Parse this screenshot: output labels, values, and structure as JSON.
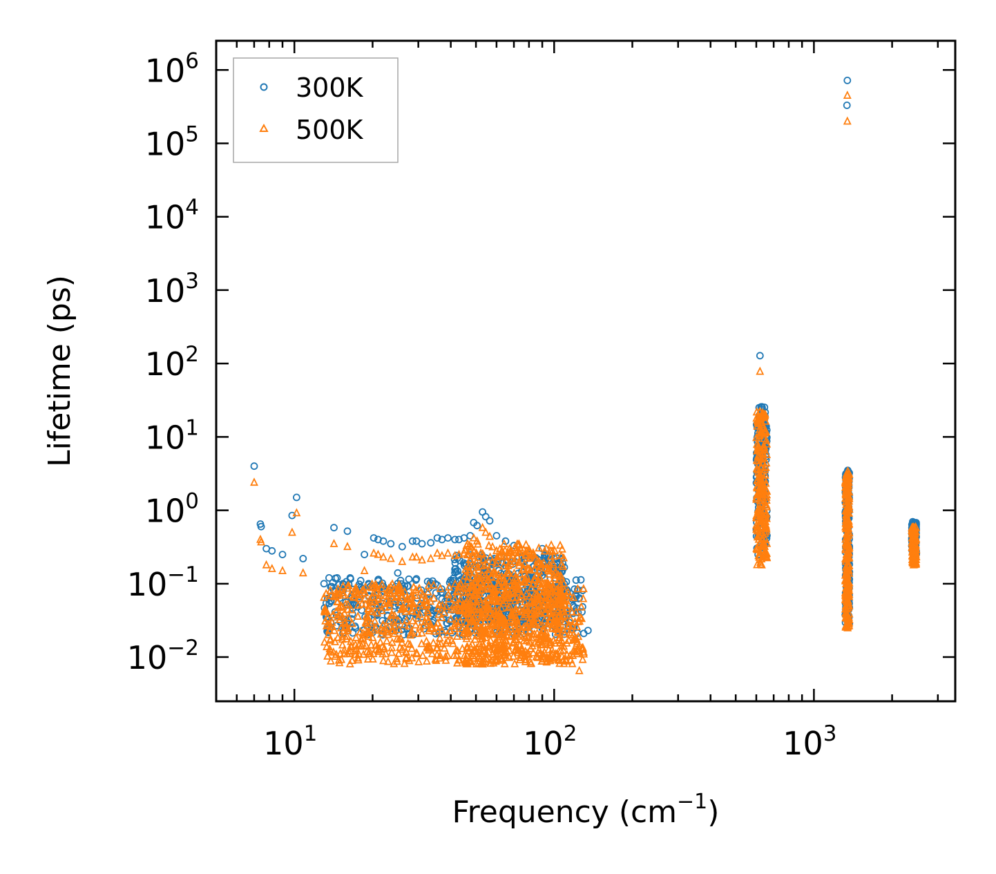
{
  "chart_data": {
    "type": "scatter",
    "xscale": "log",
    "yscale": "log",
    "xlim": [
      5,
      3500
    ],
    "ylim": [
      0.0025,
      2500000
    ],
    "xlabel": {
      "base": "Frequency (cm",
      "sup": "−1",
      "tail": ")"
    },
    "ylabel": "Lifetime (ps)",
    "x_ticks": [
      {
        "base": "10",
        "exp": "1"
      },
      {
        "base": "10",
        "exp": "2"
      },
      {
        "base": "10",
        "exp": "3"
      }
    ],
    "y_ticks": [
      {
        "base": "10",
        "exp": "−2"
      },
      {
        "base": "10",
        "exp": "−1"
      },
      {
        "base": "10",
        "exp": "0"
      },
      {
        "base": "10",
        "exp": "1"
      },
      {
        "base": "10",
        "exp": "2"
      },
      {
        "base": "10",
        "exp": "3"
      },
      {
        "base": "10",
        "exp": "4"
      },
      {
        "base": "10",
        "exp": "5"
      },
      {
        "base": "10",
        "exp": "6"
      }
    ],
    "legend": {
      "position": "upper-left",
      "entries": [
        "300K",
        "500K"
      ]
    },
    "series": [
      {
        "name": "300K",
        "marker": "circle",
        "color": "#1f77b4",
        "points": [
          [
            7.0,
            4.0
          ],
          [
            7.4,
            0.65
          ],
          [
            7.45,
            0.6
          ],
          [
            7.8,
            0.3
          ],
          [
            8.2,
            0.28
          ],
          [
            9.0,
            0.25
          ],
          [
            9.8,
            0.85
          ],
          [
            10.2,
            1.5
          ],
          [
            10.8,
            0.22
          ],
          [
            13.0,
            0.1
          ],
          [
            13.6,
            0.12
          ],
          [
            14.2,
            0.58
          ],
          [
            14.6,
            0.12
          ],
          [
            15.4,
            0.1
          ],
          [
            16.0,
            0.52
          ],
          [
            16.4,
            0.12
          ],
          [
            18.0,
            0.11
          ],
          [
            18.6,
            0.25
          ],
          [
            19.5,
            0.09
          ],
          [
            20.2,
            0.42
          ],
          [
            21.0,
            0.4
          ],
          [
            22.0,
            0.38
          ],
          [
            23.5,
            0.35
          ],
          [
            25.0,
            0.14
          ],
          [
            26.0,
            0.32
          ],
          [
            28.5,
            0.38
          ],
          [
            29.5,
            0.38
          ],
          [
            31.0,
            0.35
          ],
          [
            33.5,
            0.36
          ],
          [
            35.5,
            0.42
          ],
          [
            37.0,
            0.4
          ],
          [
            39.0,
            0.42
          ],
          [
            41.5,
            0.4
          ],
          [
            43.0,
            0.4
          ],
          [
            45.0,
            0.42
          ],
          [
            47.5,
            0.45
          ],
          [
            49.0,
            0.68
          ],
          [
            50.5,
            0.62
          ],
          [
            53.0,
            0.95
          ],
          [
            54.5,
            0.82
          ],
          [
            56.5,
            0.72
          ],
          [
            60.0,
            0.45
          ],
          [
            65.0,
            0.38
          ],
          [
            70.0,
            0.33
          ],
          [
            80.0,
            0.25
          ],
          [
            85.0,
            0.22
          ],
          [
            90.0,
            0.3
          ],
          [
            95.0,
            0.24
          ],
          [
            100.0,
            0.22
          ],
          [
            105.0,
            0.12
          ],
          [
            110.0,
            0.05
          ],
          [
            120.0,
            0.028
          ],
          [
            130.0,
            0.021
          ],
          [
            135.0,
            0.023
          ],
          [
            610.0,
            0.25
          ],
          [
            615.0,
            25.0
          ],
          [
            620.0,
            128.0
          ],
          [
            625.0,
            1.0
          ],
          [
            630.0,
            0.5
          ],
          [
            1340.0,
            330000.0
          ],
          [
            1345.0,
            720000.0
          ],
          [
            1350.0,
            3.5
          ],
          [
            1345.0,
            1.9
          ],
          [
            1350.0,
            0.03
          ],
          [
            2400.0,
            0.7
          ],
          [
            2420.0,
            0.3
          ],
          [
            2450.0,
            0.6
          ]
        ],
        "bands": [
          {
            "x": [
              13,
              130
            ],
            "y": [
              0.02,
              0.12
            ],
            "n": 520
          },
          {
            "x": [
              40,
              110
            ],
            "y": [
              0.03,
              0.25
            ],
            "n": 380
          },
          {
            "x": [
              600,
              660
            ],
            "y": [
              0.3,
              26
            ],
            "n": 170
          },
          {
            "x": [
              1320,
              1370
            ],
            "y": [
              0.028,
              3.4
            ],
            "n": 190
          },
          {
            "x": [
              2380,
              2480
            ],
            "y": [
              0.25,
              0.7
            ],
            "n": 110
          }
        ]
      },
      {
        "name": "500K",
        "marker": "triangle",
        "color": "#ff7f0e",
        "points": [
          [
            7.0,
            2.4
          ],
          [
            7.4,
            0.4
          ],
          [
            7.45,
            0.37
          ],
          [
            7.8,
            0.18
          ],
          [
            8.2,
            0.16
          ],
          [
            9.0,
            0.15
          ],
          [
            9.8,
            0.5
          ],
          [
            10.2,
            0.92
          ],
          [
            10.8,
            0.14
          ],
          [
            13.0,
            0.065
          ],
          [
            14.2,
            0.35
          ],
          [
            14.6,
            0.075
          ],
          [
            16.0,
            0.32
          ],
          [
            16.4,
            0.07
          ],
          [
            18.0,
            0.07
          ],
          [
            18.6,
            0.15
          ],
          [
            19.5,
            0.06
          ],
          [
            20.2,
            0.26
          ],
          [
            21.0,
            0.25
          ],
          [
            22.0,
            0.23
          ],
          [
            23.5,
            0.22
          ],
          [
            25.0,
            0.08
          ],
          [
            26.0,
            0.2
          ],
          [
            28.5,
            0.23
          ],
          [
            29.5,
            0.23
          ],
          [
            31.0,
            0.21
          ],
          [
            33.5,
            0.22
          ],
          [
            35.5,
            0.26
          ],
          [
            37.0,
            0.24
          ],
          [
            39.0,
            0.26
          ],
          [
            41.5,
            0.24
          ],
          [
            43.0,
            0.25
          ],
          [
            45.0,
            0.26
          ],
          [
            47.5,
            0.28
          ],
          [
            49.0,
            0.42
          ],
          [
            50.5,
            0.38
          ],
          [
            53.0,
            0.58
          ],
          [
            54.5,
            0.5
          ],
          [
            56.5,
            0.44
          ],
          [
            60.0,
            0.28
          ],
          [
            65.0,
            0.23
          ],
          [
            70.0,
            0.2
          ],
          [
            80.0,
            0.16
          ],
          [
            90.0,
            0.18
          ],
          [
            95.0,
            0.15
          ],
          [
            100.0,
            0.13
          ],
          [
            105.0,
            0.075
          ],
          [
            110.0,
            0.03
          ],
          [
            120.0,
            0.012
          ],
          [
            125.0,
            0.0065
          ],
          [
            130.0,
            0.011
          ],
          [
            612.0,
            0.24
          ],
          [
            620.0,
            78.0
          ],
          [
            618.0,
            22.0
          ],
          [
            630.0,
            0.18
          ],
          [
            1345.0,
            450000.0
          ],
          [
            1345.0,
            200000.0
          ],
          [
            1350.0,
            3.4
          ],
          [
            1348.0,
            0.025
          ],
          [
            2400.0,
            0.55
          ],
          [
            2420.0,
            0.18
          ],
          [
            2450.0,
            0.45
          ]
        ],
        "bands": [
          {
            "x": [
              13,
              130
            ],
            "y": [
              0.008,
              0.1
            ],
            "n": 750
          },
          {
            "x": [
              45,
              110
            ],
            "y": [
              0.008,
              0.35
            ],
            "n": 550
          },
          {
            "x": [
              600,
              660
            ],
            "y": [
              0.18,
              22
            ],
            "n": 200
          },
          {
            "x": [
              1320,
              1370
            ],
            "y": [
              0.025,
              3.3
            ],
            "n": 210
          },
          {
            "x": [
              2380,
              2480
            ],
            "y": [
              0.18,
              0.6
            ],
            "n": 130
          }
        ]
      }
    ]
  }
}
